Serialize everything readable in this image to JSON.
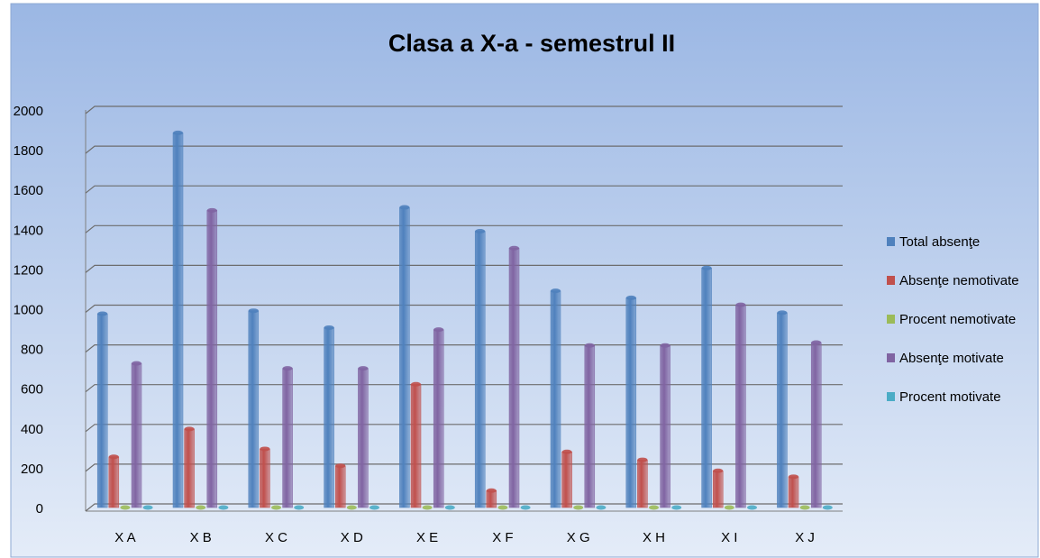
{
  "chart_data": {
    "type": "bar",
    "title": "Clasa a X-a - semestrul II",
    "categories": [
      "X A",
      "X B",
      "X C",
      "X D",
      "X E",
      "X F",
      "X G",
      "X H",
      "X I",
      "X J"
    ],
    "series": [
      {
        "name": "Total absenţe",
        "color": "#4f81bd",
        "values": [
          975,
          1885,
          990,
          905,
          1510,
          1390,
          1090,
          1055,
          1205,
          980
        ]
      },
      {
        "name": "Absenţe nemotivate",
        "color": "#c0504d",
        "values": [
          255,
          395,
          295,
          210,
          620,
          85,
          280,
          240,
          185,
          155
        ]
      },
      {
        "name": "Procent nemotivate",
        "color": "#9bbb59",
        "values": [
          0,
          0,
          0,
          0,
          0,
          0,
          0,
          0,
          0,
          0
        ]
      },
      {
        "name": "Absenţe motivate",
        "color": "#8064a2",
        "values": [
          725,
          1495,
          700,
          700,
          895,
          1305,
          815,
          815,
          1020,
          830
        ]
      },
      {
        "name": "Procent motivate",
        "color": "#4bacc6",
        "values": [
          0,
          0,
          0,
          0,
          0,
          0,
          0,
          0,
          0,
          0
        ]
      }
    ],
    "ylim": [
      0,
      2000
    ],
    "yticks": [
      0,
      200,
      400,
      600,
      800,
      1000,
      1200,
      1400,
      1600,
      1800,
      2000
    ],
    "grid": true,
    "legend": "right"
  }
}
